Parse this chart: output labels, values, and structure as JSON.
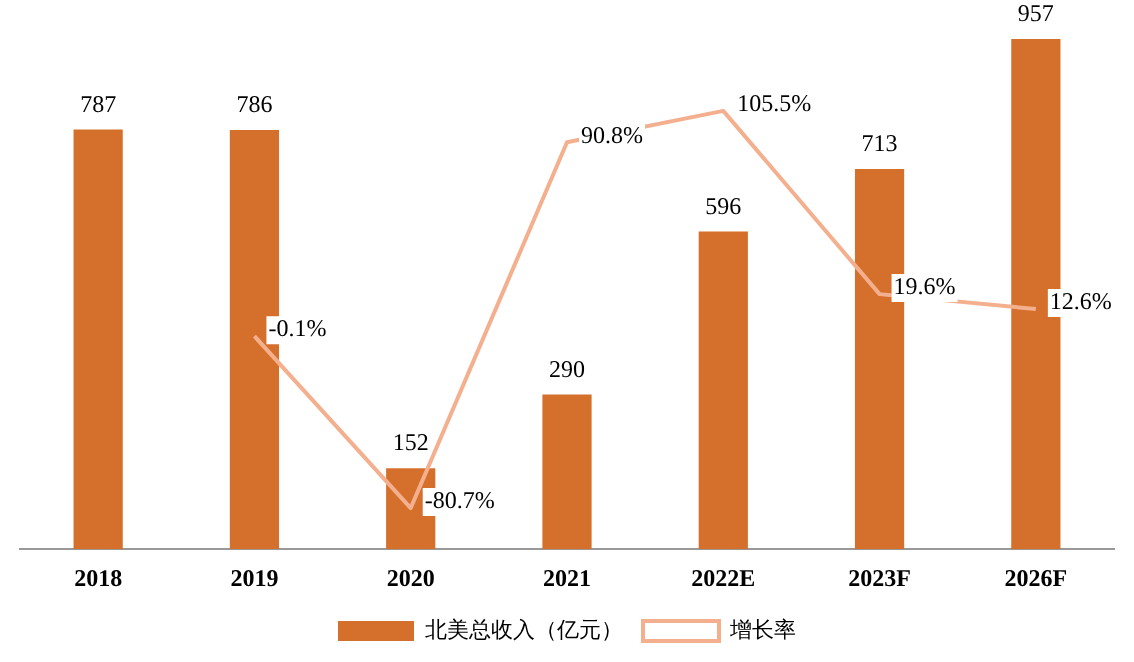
{
  "chart_data": {
    "type": "bar",
    "categories": [
      "2018",
      "2019",
      "2020",
      "2021",
      "2022E",
      "2023F",
      "2026F"
    ],
    "series": [
      {
        "name": "北美总收入（亿元）",
        "color": "#d5702c",
        "values": [
          787,
          786,
          152,
          290,
          596,
          713,
          957
        ],
        "value_labels": [
          "787",
          "786",
          "152",
          "290",
          "596",
          "713",
          "957"
        ]
      },
      {
        "name": "增长率",
        "type": "line",
        "axis": "y2",
        "color": "#f4b08e",
        "values": [
          null,
          -0.1,
          -80.7,
          90.8,
          105.5,
          19.6,
          12.6
        ],
        "value_labels": [
          null,
          "-0.1%",
          "-80.7%",
          "90.8%",
          "105.5%",
          "19.6%",
          "12.6%"
        ]
      }
    ],
    "tick_labels": "x",
    "grid": false,
    "legend": "bottom",
    "marker": "none"
  }
}
